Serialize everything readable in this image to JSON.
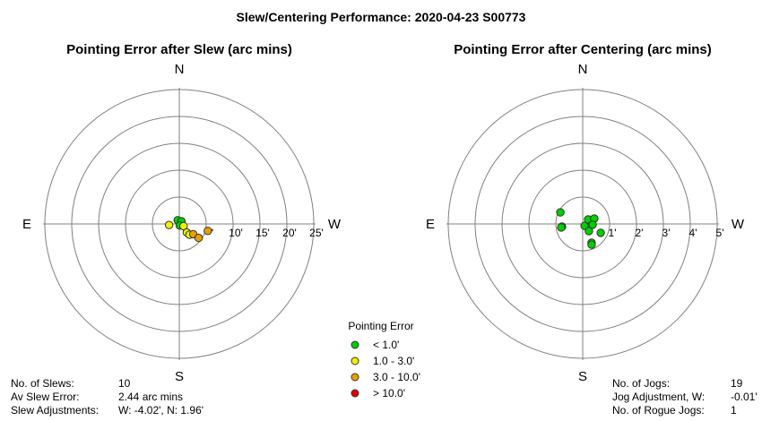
{
  "title": "Slew/Centering Performance: 2020-04-23 S00773",
  "compass": {
    "north": "N",
    "south": "S",
    "east": "E",
    "west": "W"
  },
  "legend": {
    "title": "Pointing Error",
    "items": [
      {
        "label": "< 1.0'",
        "color": "#00d000"
      },
      {
        "label": "1.0 - 3.0'",
        "color": "#f0f000"
      },
      {
        "label": "3.0 - 10.0'",
        "color": "#e8a000"
      },
      {
        "label": "> 10.0'",
        "color": "#e00000"
      }
    ]
  },
  "chart_data": [
    {
      "type": "scatter",
      "title": "Pointing Error after Slew (arc mins)",
      "radial_max": 25,
      "rings": [
        5,
        10,
        15,
        20,
        25
      ],
      "tick_labels": [
        "10'",
        "15'",
        "20'",
        "25'"
      ],
      "partial_tick_label": "'",
      "axes": "W positive (x), N positive (y)",
      "points": [
        {
          "x": -0.3,
          "y": 0.7,
          "color": "#00d000"
        },
        {
          "x": 0.4,
          "y": 0.5,
          "color": "#00d000"
        },
        {
          "x": 0.1,
          "y": -0.3,
          "color": "#00d000"
        },
        {
          "x": -1.9,
          "y": -0.2,
          "color": "#f0f000"
        },
        {
          "x": 0.8,
          "y": -0.4,
          "color": "#f0f000"
        },
        {
          "x": 1.4,
          "y": -1.6,
          "color": "#f0f000"
        },
        {
          "x": 1.9,
          "y": -2.0,
          "color": "#f0f000"
        },
        {
          "x": 2.6,
          "y": -1.9,
          "color": "#e8a000"
        },
        {
          "x": 3.6,
          "y": -2.6,
          "color": "#e8a000"
        },
        {
          "x": 5.3,
          "y": -1.3,
          "color": "#e8a000"
        }
      ],
      "stats": [
        {
          "label": "No. of Slews:",
          "value": "10"
        },
        {
          "label": "Av Slew Error:",
          "value": "2.44 arc mins"
        },
        {
          "label": "Slew Adjustments:",
          "value": "W: -4.02', N: 1.96'"
        }
      ]
    },
    {
      "type": "scatter",
      "title": "Pointing Error after Centering (arc mins)",
      "radial_max": 5,
      "rings": [
        1,
        2,
        3,
        4,
        5
      ],
      "tick_labels": [
        "1'",
        "2'",
        "3'",
        "4'",
        "5'"
      ],
      "axes": "W positive (x), N positive (y)",
      "points": [
        {
          "x": -0.83,
          "y": 0.43,
          "color": "#00d000"
        },
        {
          "x": -0.77,
          "y": -0.1,
          "color": "#00d000"
        },
        {
          "x": -0.8,
          "y": -0.13,
          "color": "#00d000"
        },
        {
          "x": 0.07,
          "y": -0.07,
          "color": "#00d000"
        },
        {
          "x": 0.2,
          "y": 0.17,
          "color": "#00d000"
        },
        {
          "x": 0.43,
          "y": 0.2,
          "color": "#00d000"
        },
        {
          "x": 0.37,
          "y": -0.03,
          "color": "#00d000"
        },
        {
          "x": 0.23,
          "y": -0.27,
          "color": "#00d000"
        },
        {
          "x": 0.67,
          "y": -0.33,
          "color": "#00d000"
        },
        {
          "x": 0.33,
          "y": -0.7,
          "color": "#00d000"
        },
        {
          "x": 0.33,
          "y": -0.77,
          "color": "#00d000"
        }
      ],
      "stats": [
        {
          "label": "No. of Jogs:",
          "value": "19"
        },
        {
          "label": "Jog Adjustment, W:",
          "value": "-0.01'"
        },
        {
          "label": "No. of Rogue Jogs:",
          "value": "1"
        }
      ]
    }
  ]
}
